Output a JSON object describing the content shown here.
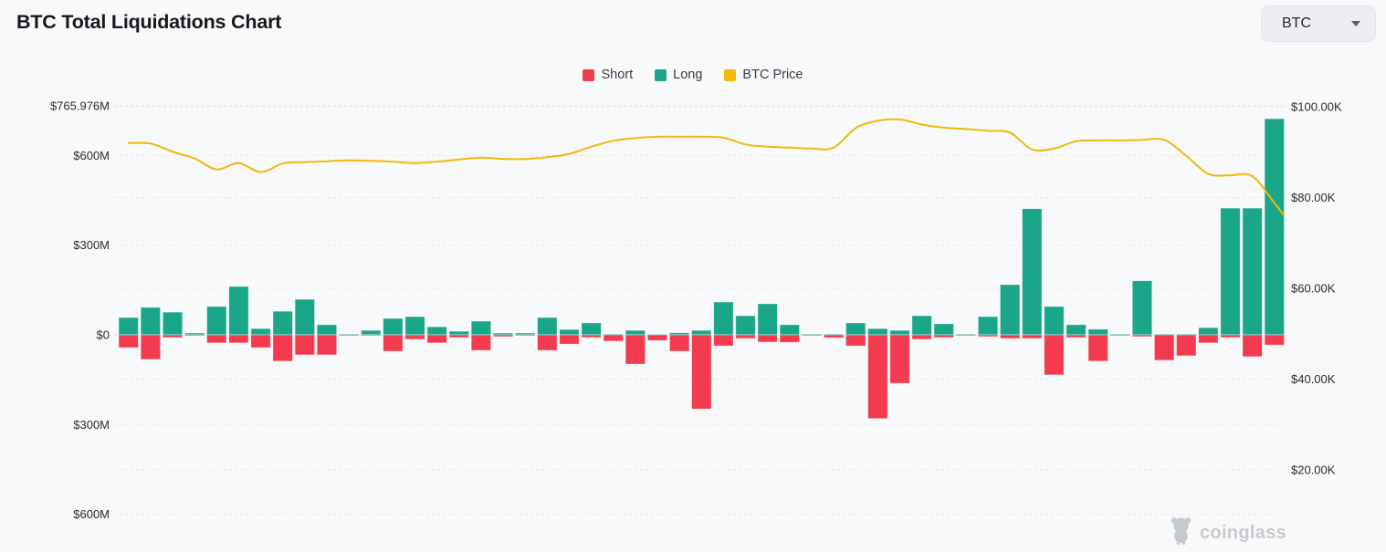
{
  "header": {
    "title": "BTC Total Liquidations Chart",
    "coin_selector": {
      "value": "BTC"
    }
  },
  "watermark": {
    "text": "coinglass"
  },
  "chart_data": {
    "type": "bar",
    "subtype": "diverging stacked bars (Long up, Short down) with BTC price line on right axis",
    "title": "BTC Total Liquidations Chart",
    "bar_count": 53,
    "grid": "dashed horizontal gridlines on both axes",
    "legend_position": "top-center",
    "legend": [
      {
        "label": "Short",
        "color": "#F23B4F",
        "marker": "square"
      },
      {
        "label": "Long",
        "color": "#1AA689",
        "marker": "square"
      },
      {
        "label": "BTC Price",
        "color": "#F0B90B",
        "marker": "square"
      }
    ],
    "left_axis": {
      "tick_labels": [
        "$765.976M",
        "$600M",
        "$300M",
        "$0",
        "$300M",
        "$600M"
      ],
      "tick_values_musd": [
        765.976,
        600,
        300,
        0,
        -300,
        -600
      ]
    },
    "right_axis": {
      "tick_labels": [
        "$100.00K",
        "$80.00K",
        "$60.00K",
        "$40.00K",
        "$20.00K"
      ],
      "tick_values_kusd": [
        100,
        80,
        60,
        40,
        20
      ]
    },
    "series": [
      {
        "name": "Long",
        "type": "bar",
        "axis": "left",
        "direction": "up",
        "unit": "USD millions (estimated from chart)",
        "color": "#1AA689",
        "values": [
          58,
          92,
          76,
          6,
          95,
          162,
          21,
          79,
          119,
          34,
          3,
          15,
          55,
          61,
          27,
          12,
          46,
          6,
          6,
          58,
          18,
          40,
          3,
          15,
          2,
          7,
          15,
          110,
          64,
          104,
          34,
          3,
          3,
          40,
          21,
          15,
          64,
          37,
          3,
          61,
          168,
          422,
          95,
          34,
          19,
          3,
          181,
          3,
          3,
          24,
          424,
          424,
          723
        ]
      },
      {
        "name": "Short",
        "type": "bar",
        "axis": "left",
        "direction": "down",
        "unit": "USD millions (estimated from chart, plotted downward)",
        "color": "#F23B4F",
        "values": [
          43,
          82,
          9,
          3,
          27,
          27,
          43,
          88,
          67,
          67,
          3,
          3,
          55,
          15,
          27,
          9,
          52,
          6,
          3,
          52,
          31,
          9,
          21,
          98,
          19,
          55,
          248,
          37,
          12,
          24,
          25,
          2,
          10,
          37,
          280,
          162,
          15,
          9,
          3,
          6,
          12,
          12,
          134,
          9,
          88,
          3,
          6,
          85,
          70,
          27,
          9,
          73,
          34
        ]
      },
      {
        "name": "BTC Price",
        "type": "line",
        "axis": "right",
        "unit": "USD thousands (estimated from chart)",
        "color": "#F0B90B",
        "values": [
          92.0,
          91.9,
          90.1,
          88.6,
          86.2,
          87.6,
          85.6,
          87.5,
          87.8,
          88.0,
          88.2,
          88.1,
          87.9,
          87.6,
          87.9,
          88.4,
          88.8,
          88.5,
          88.5,
          88.9,
          89.6,
          91.2,
          92.5,
          93.1,
          93.4,
          93.4,
          93.4,
          93.2,
          91.7,
          91.2,
          91.0,
          90.8,
          91.0,
          95.3,
          96.9,
          97.2,
          96.1,
          95.4,
          95.1,
          94.7,
          94.3,
          90.6,
          90.8,
          92.4,
          92.6,
          92.6,
          92.7,
          92.7,
          89.2,
          85.2,
          84.9,
          84.7,
          78.8
        ],
        "end_value": 76.2
      }
    ],
    "colors": {
      "short": "#F23B4F",
      "long": "#1AA689",
      "btc_price": "#F0B90B",
      "background": "#F8F9FA",
      "gridline": "#E7E8EB",
      "zero_line": "#D8DADE"
    }
  }
}
